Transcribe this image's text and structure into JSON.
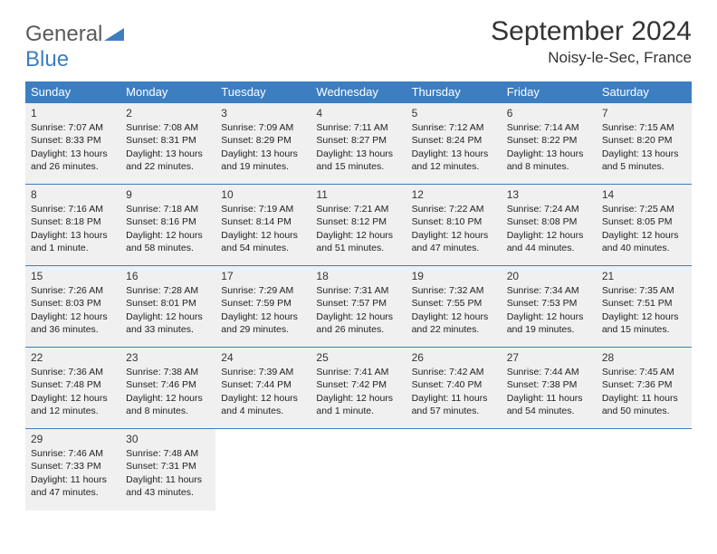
{
  "logo": {
    "word1": "General",
    "word2": "Blue"
  },
  "title": "September 2024",
  "location": "Noisy-le-Sec, France",
  "colors": {
    "header_bg": "#3d7ec1",
    "header_text": "#ffffff",
    "cell_bg": "#f0f0f0",
    "border": "#3d7ec1",
    "text": "#222222",
    "logo_gray": "#5a5a5a",
    "logo_blue": "#3d7ec1",
    "page_bg": "#ffffff"
  },
  "typography": {
    "title_fontsize": 30,
    "location_fontsize": 17,
    "dayheader_fontsize": 13,
    "cell_fontsize": 10.5,
    "daynum_fontsize": 12
  },
  "day_headers": [
    "Sunday",
    "Monday",
    "Tuesday",
    "Wednesday",
    "Thursday",
    "Friday",
    "Saturday"
  ],
  "weeks": [
    [
      {
        "n": "1",
        "sr": "Sunrise: 7:07 AM",
        "ss": "Sunset: 8:33 PM",
        "dl": "Daylight: 13 hours and 26 minutes."
      },
      {
        "n": "2",
        "sr": "Sunrise: 7:08 AM",
        "ss": "Sunset: 8:31 PM",
        "dl": "Daylight: 13 hours and 22 minutes."
      },
      {
        "n": "3",
        "sr": "Sunrise: 7:09 AM",
        "ss": "Sunset: 8:29 PM",
        "dl": "Daylight: 13 hours and 19 minutes."
      },
      {
        "n": "4",
        "sr": "Sunrise: 7:11 AM",
        "ss": "Sunset: 8:27 PM",
        "dl": "Daylight: 13 hours and 15 minutes."
      },
      {
        "n": "5",
        "sr": "Sunrise: 7:12 AM",
        "ss": "Sunset: 8:24 PM",
        "dl": "Daylight: 13 hours and 12 minutes."
      },
      {
        "n": "6",
        "sr": "Sunrise: 7:14 AM",
        "ss": "Sunset: 8:22 PM",
        "dl": "Daylight: 13 hours and 8 minutes."
      },
      {
        "n": "7",
        "sr": "Sunrise: 7:15 AM",
        "ss": "Sunset: 8:20 PM",
        "dl": "Daylight: 13 hours and 5 minutes."
      }
    ],
    [
      {
        "n": "8",
        "sr": "Sunrise: 7:16 AM",
        "ss": "Sunset: 8:18 PM",
        "dl": "Daylight: 13 hours and 1 minute."
      },
      {
        "n": "9",
        "sr": "Sunrise: 7:18 AM",
        "ss": "Sunset: 8:16 PM",
        "dl": "Daylight: 12 hours and 58 minutes."
      },
      {
        "n": "10",
        "sr": "Sunrise: 7:19 AM",
        "ss": "Sunset: 8:14 PM",
        "dl": "Daylight: 12 hours and 54 minutes."
      },
      {
        "n": "11",
        "sr": "Sunrise: 7:21 AM",
        "ss": "Sunset: 8:12 PM",
        "dl": "Daylight: 12 hours and 51 minutes."
      },
      {
        "n": "12",
        "sr": "Sunrise: 7:22 AM",
        "ss": "Sunset: 8:10 PM",
        "dl": "Daylight: 12 hours and 47 minutes."
      },
      {
        "n": "13",
        "sr": "Sunrise: 7:24 AM",
        "ss": "Sunset: 8:08 PM",
        "dl": "Daylight: 12 hours and 44 minutes."
      },
      {
        "n": "14",
        "sr": "Sunrise: 7:25 AM",
        "ss": "Sunset: 8:05 PM",
        "dl": "Daylight: 12 hours and 40 minutes."
      }
    ],
    [
      {
        "n": "15",
        "sr": "Sunrise: 7:26 AM",
        "ss": "Sunset: 8:03 PM",
        "dl": "Daylight: 12 hours and 36 minutes."
      },
      {
        "n": "16",
        "sr": "Sunrise: 7:28 AM",
        "ss": "Sunset: 8:01 PM",
        "dl": "Daylight: 12 hours and 33 minutes."
      },
      {
        "n": "17",
        "sr": "Sunrise: 7:29 AM",
        "ss": "Sunset: 7:59 PM",
        "dl": "Daylight: 12 hours and 29 minutes."
      },
      {
        "n": "18",
        "sr": "Sunrise: 7:31 AM",
        "ss": "Sunset: 7:57 PM",
        "dl": "Daylight: 12 hours and 26 minutes."
      },
      {
        "n": "19",
        "sr": "Sunrise: 7:32 AM",
        "ss": "Sunset: 7:55 PM",
        "dl": "Daylight: 12 hours and 22 minutes."
      },
      {
        "n": "20",
        "sr": "Sunrise: 7:34 AM",
        "ss": "Sunset: 7:53 PM",
        "dl": "Daylight: 12 hours and 19 minutes."
      },
      {
        "n": "21",
        "sr": "Sunrise: 7:35 AM",
        "ss": "Sunset: 7:51 PM",
        "dl": "Daylight: 12 hours and 15 minutes."
      }
    ],
    [
      {
        "n": "22",
        "sr": "Sunrise: 7:36 AM",
        "ss": "Sunset: 7:48 PM",
        "dl": "Daylight: 12 hours and 12 minutes."
      },
      {
        "n": "23",
        "sr": "Sunrise: 7:38 AM",
        "ss": "Sunset: 7:46 PM",
        "dl": "Daylight: 12 hours and 8 minutes."
      },
      {
        "n": "24",
        "sr": "Sunrise: 7:39 AM",
        "ss": "Sunset: 7:44 PM",
        "dl": "Daylight: 12 hours and 4 minutes."
      },
      {
        "n": "25",
        "sr": "Sunrise: 7:41 AM",
        "ss": "Sunset: 7:42 PM",
        "dl": "Daylight: 12 hours and 1 minute."
      },
      {
        "n": "26",
        "sr": "Sunrise: 7:42 AM",
        "ss": "Sunset: 7:40 PM",
        "dl": "Daylight: 11 hours and 57 minutes."
      },
      {
        "n": "27",
        "sr": "Sunrise: 7:44 AM",
        "ss": "Sunset: 7:38 PM",
        "dl": "Daylight: 11 hours and 54 minutes."
      },
      {
        "n": "28",
        "sr": "Sunrise: 7:45 AM",
        "ss": "Sunset: 7:36 PM",
        "dl": "Daylight: 11 hours and 50 minutes."
      }
    ],
    [
      {
        "n": "29",
        "sr": "Sunrise: 7:46 AM",
        "ss": "Sunset: 7:33 PM",
        "dl": "Daylight: 11 hours and 47 minutes."
      },
      {
        "n": "30",
        "sr": "Sunrise: 7:48 AM",
        "ss": "Sunset: 7:31 PM",
        "dl": "Daylight: 11 hours and 43 minutes."
      },
      null,
      null,
      null,
      null,
      null
    ]
  ]
}
